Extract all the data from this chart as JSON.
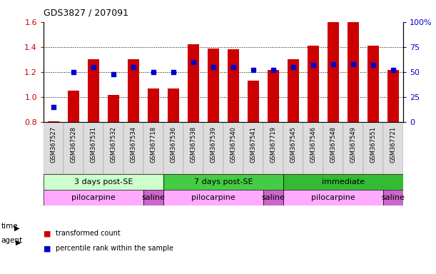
{
  "title": "GDS3827 / 207091",
  "samples": [
    "GSM367527",
    "GSM367528",
    "GSM367531",
    "GSM367532",
    "GSM367534",
    "GSM367718",
    "GSM367536",
    "GSM367538",
    "GSM367539",
    "GSM367540",
    "GSM367541",
    "GSM367719",
    "GSM367545",
    "GSM367546",
    "GSM367548",
    "GSM367549",
    "GSM367551",
    "GSM367721"
  ],
  "transformed_count": [
    0.81,
    1.05,
    1.3,
    1.02,
    1.3,
    1.07,
    1.07,
    1.42,
    1.39,
    1.38,
    1.13,
    1.22,
    1.3,
    1.41,
    1.6,
    1.6,
    1.41,
    1.22
  ],
  "percentile_rank_val": [
    15.0,
    50.0,
    55.0,
    48.0,
    55.0,
    50.0,
    50.0,
    60.0,
    55.0,
    55.0,
    52.0,
    52.0,
    55.0,
    57.0,
    58.0,
    58.0,
    57.0,
    52.0
  ],
  "bar_color": "#cc0000",
  "dot_color": "#0000cc",
  "ylim": [
    0.8,
    1.6
  ],
  "y2lim": [
    0,
    100
  ],
  "yticks": [
    0.8,
    1.0,
    1.2,
    1.4,
    1.6
  ],
  "y2ticks": [
    0,
    25,
    50,
    75,
    100
  ],
  "y2ticklabels": [
    "0",
    "25",
    "50",
    "75",
    "100%"
  ],
  "time_groups": [
    {
      "label": "3 days post-SE",
      "start": 0,
      "end": 6,
      "color": "#ccffcc"
    },
    {
      "label": "7 days post-SE",
      "start": 6,
      "end": 12,
      "color": "#44cc44"
    },
    {
      "label": "immediate",
      "start": 12,
      "end": 18,
      "color": "#33bb33"
    }
  ],
  "agent_groups": [
    {
      "label": "pilocarpine",
      "start": 0,
      "end": 5,
      "color": "#ffaaff"
    },
    {
      "label": "saline",
      "start": 5,
      "end": 6,
      "color": "#cc66cc"
    },
    {
      "label": "pilocarpine",
      "start": 6,
      "end": 11,
      "color": "#ffaaff"
    },
    {
      "label": "saline",
      "start": 11,
      "end": 12,
      "color": "#cc66cc"
    },
    {
      "label": "pilocarpine",
      "start": 12,
      "end": 17,
      "color": "#ffaaff"
    },
    {
      "label": "saline",
      "start": 17,
      "end": 18,
      "color": "#cc66cc"
    }
  ]
}
